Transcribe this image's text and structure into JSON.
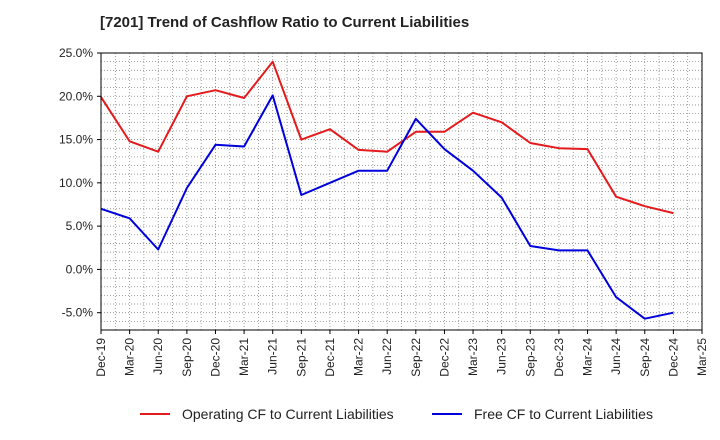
{
  "chart_data": {
    "type": "line",
    "title": "[7201]  Trend of Cashflow Ratio to Current Liabilities",
    "xlabel": "",
    "ylabel": "",
    "x": [
      "Dec-19",
      "Mar-20",
      "Jun-20",
      "Sep-20",
      "Dec-20",
      "Mar-21",
      "Jun-21",
      "Sep-21",
      "Dec-21",
      "Mar-22",
      "Jun-22",
      "Sep-22",
      "Dec-22",
      "Mar-23",
      "Jun-23",
      "Sep-23",
      "Dec-23",
      "Mar-24",
      "Jun-24",
      "Sep-24",
      "Dec-24",
      "Mar-25"
    ],
    "ylim": [
      -7,
      25
    ],
    "yticks": [
      25,
      20,
      15,
      10,
      5,
      0,
      -5
    ],
    "ytick_labels": [
      "25.0%",
      "20.0%",
      "15.0%",
      "10.0%",
      "5.0%",
      "0.0%",
      "-5.0%"
    ],
    "grid": true,
    "legend_position": "bottom",
    "series": [
      {
        "name": "Operating CF to Current Liabilities",
        "color": "#e41a1c",
        "values": [
          19.9,
          14.8,
          13.6,
          20.0,
          20.7,
          19.8,
          24.0,
          15.0,
          16.2,
          13.8,
          13.6,
          15.9,
          15.9,
          18.1,
          17.0,
          14.6,
          14.0,
          13.9,
          8.4,
          7.3,
          6.5,
          null
        ]
      },
      {
        "name": "Free CF to Current Liabilities",
        "color": "#0000dd",
        "values": [
          7.0,
          5.9,
          2.3,
          9.4,
          14.4,
          14.2,
          20.1,
          8.6,
          10.0,
          11.4,
          11.4,
          17.4,
          13.9,
          11.4,
          8.3,
          2.7,
          2.2,
          2.2,
          -3.2,
          -5.7,
          -5.0,
          null
        ]
      }
    ]
  }
}
